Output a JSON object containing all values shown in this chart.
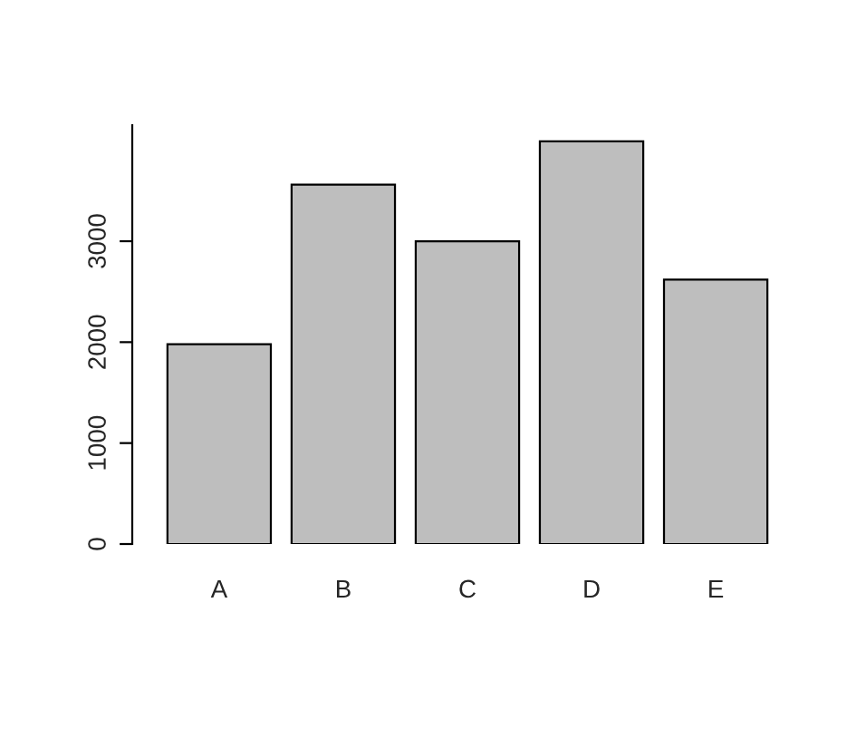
{
  "chart_data": {
    "type": "bar",
    "categories": [
      "A",
      "B",
      "C",
      "D",
      "E"
    ],
    "values": [
      1980,
      3560,
      3000,
      3990,
      2620
    ],
    "color": "#bebebe",
    "ylim": [
      0,
      4150
    ],
    "yticks": [
      0,
      1000,
      2000,
      3000
    ],
    "grid": false
  }
}
